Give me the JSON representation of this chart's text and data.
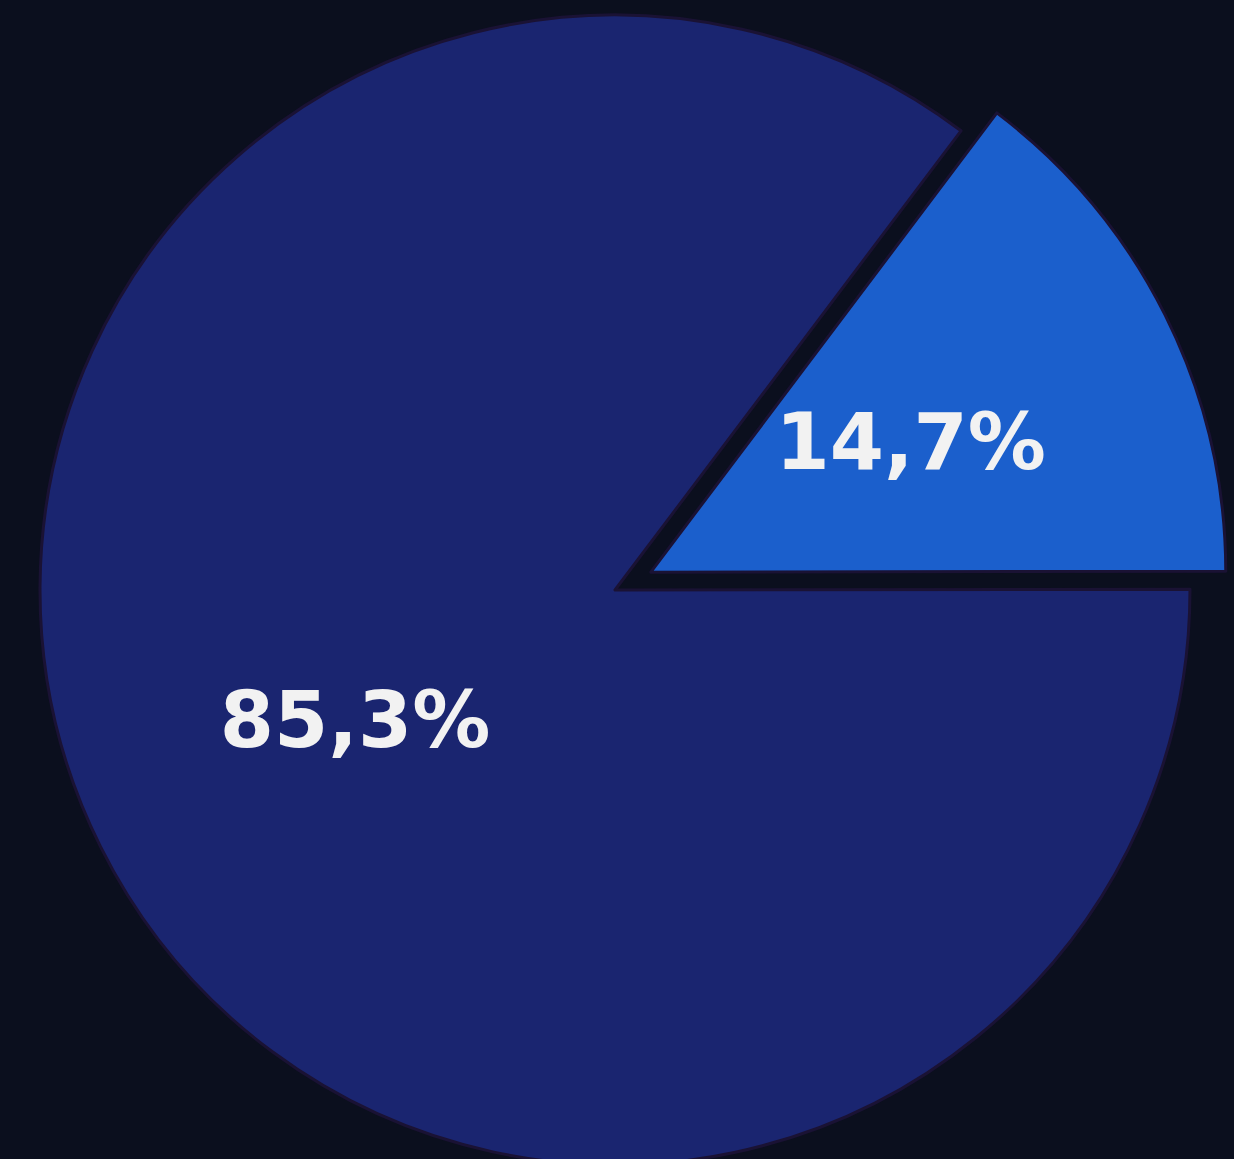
{
  "chart_data": {
    "type": "pie",
    "categories": [
      null,
      null
    ],
    "values": [
      14.7,
      85.3
    ],
    "colors": [
      "#1b5fcc",
      "#1a2570"
    ],
    "value_labels": [
      "14,7%",
      "85,3%"
    ]
  }
}
